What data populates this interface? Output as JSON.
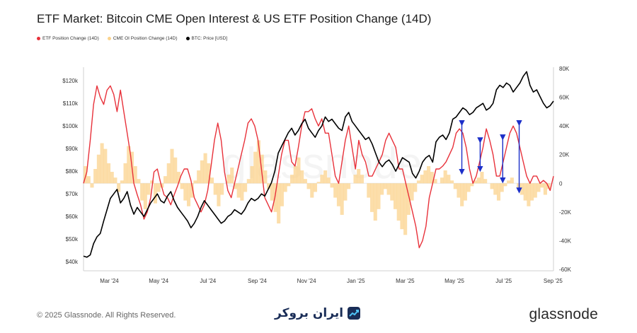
{
  "chart_data": {
    "type": "line",
    "title": "ETF Market: Bitcoin CME Open Interest & US ETF Position Change (14D)",
    "x_ticks": [
      "Mar '24",
      "May '24",
      "Jul '24",
      "Sep '24",
      "Nov '24",
      "Jan '25",
      "Mar '25",
      "May '25",
      "Jul '25",
      "Sep '25"
    ],
    "y_left_ticks": [
      "$120k",
      "$110k",
      "$100k",
      "$90k",
      "$80k",
      "$70k",
      "$60k",
      "$50k",
      "$40k"
    ],
    "y_left_values": [
      120000,
      110000,
      100000,
      90000,
      80000,
      70000,
      60000,
      50000,
      40000
    ],
    "y_right_ticks": [
      "80K",
      "60K",
      "40K",
      "20K",
      "0",
      "-20K",
      "-40K",
      "-60K"
    ],
    "y_right_values": [
      80000,
      60000,
      40000,
      20000,
      0,
      -20000,
      -40000,
      -60000
    ],
    "ylim_left": [
      36000,
      126000
    ],
    "ylim_right": [
      -61000,
      81000
    ],
    "legend_position": "top-left",
    "series": [
      {
        "name": "ETF Position Change (14D)",
        "color": "#e8313a",
        "axis": "right",
        "values": [
          0,
          8,
          30,
          55,
          68,
          60,
          55,
          65,
          68,
          62,
          50,
          65,
          50,
          35,
          20,
          0,
          -8,
          -15,
          -25,
          -20,
          -10,
          8,
          10,
          0,
          -8,
          -10,
          -15,
          -8,
          -2,
          5,
          10,
          10,
          2,
          -10,
          -15,
          -20,
          -15,
          -5,
          12,
          30,
          42,
          30,
          8,
          -5,
          -10,
          0,
          10,
          20,
          30,
          42,
          45,
          40,
          30,
          10,
          -10,
          -15,
          -20,
          -10,
          5,
          20,
          30,
          30,
          15,
          12,
          25,
          40,
          50,
          50,
          52,
          45,
          40,
          45,
          35,
          35,
          20,
          5,
          0,
          15,
          30,
          40,
          25,
          10,
          30,
          20,
          15,
          5,
          5,
          10,
          15,
          20,
          30,
          35,
          30,
          25,
          10,
          10,
          0,
          -10,
          -20,
          -30,
          -45,
          -40,
          -30,
          -10,
          0,
          10,
          10,
          12,
          15,
          20,
          25,
          35,
          38,
          35,
          25,
          10,
          0,
          5,
          15,
          25,
          38,
          30,
          20,
          5,
          5,
          15,
          25,
          35,
          40,
          35,
          25,
          15,
          5,
          0,
          5,
          5,
          0,
          2,
          0,
          -5,
          5
        ],
        "x_domain": [
          0,
          1
        ]
      },
      {
        "name": "CME OI Position Change (14D)",
        "color": "#fbd38d",
        "axis": "right",
        "values": [
          12,
          5,
          -3,
          10,
          20,
          28,
          24,
          14,
          8,
          4,
          -6,
          2,
          14,
          26,
          22,
          12,
          3,
          -12,
          -18,
          -8,
          2,
          -14,
          -6,
          -3,
          5,
          14,
          24,
          18,
          8,
          -4,
          -12,
          -16,
          -10,
          2,
          9,
          16,
          21,
          14,
          4,
          -8,
          -16,
          -8,
          0,
          6,
          11,
          -4,
          -10,
          -12,
          -6,
          3,
          12,
          22,
          30,
          20,
          9,
          -4,
          -12,
          -20,
          -28,
          -16,
          -6,
          -2,
          6,
          12,
          18,
          9,
          3,
          -4,
          -10,
          -6,
          1,
          6,
          9,
          4,
          -3,
          -10,
          -16,
          -22,
          -12,
          -4,
          0,
          6,
          10,
          6,
          0,
          -10,
          -20,
          -26,
          -18,
          -8,
          -4,
          -8,
          -12,
          -18,
          -26,
          -32,
          -36,
          -22,
          -12,
          -6,
          2,
          6,
          9,
          12,
          8,
          3,
          0,
          4,
          9,
          6,
          2,
          -4,
          -10,
          -16,
          -12,
          -6,
          -2,
          2,
          4,
          8,
          3,
          0,
          -4,
          -8,
          -12,
          -6,
          -2,
          2,
          4,
          0,
          -4,
          -8,
          -12,
          -16,
          -12,
          -10,
          -6,
          -3,
          -8,
          -4,
          0
        ],
        "x_domain": [
          0,
          1
        ]
      },
      {
        "name": "BTC: Price [USD]",
        "color": "#000000",
        "axis": "left",
        "values": [
          42500,
          42000,
          43000,
          48000,
          51000,
          52500,
          58000,
          63000,
          68000,
          70000,
          72000,
          66000,
          68000,
          71000,
          65000,
          61000,
          64000,
          62000,
          60000,
          63000,
          66000,
          68000,
          70000,
          67000,
          66000,
          69000,
          71000,
          67000,
          64000,
          62000,
          60000,
          58000,
          55000,
          57000,
          60000,
          64000,
          67000,
          65000,
          63000,
          61000,
          59000,
          57000,
          58000,
          60000,
          61000,
          63000,
          62000,
          61000,
          63000,
          66000,
          68000,
          67000,
          68000,
          70000,
          69000,
          72000,
          75000,
          80000,
          88000,
          91000,
          94000,
          97000,
          99000,
          96000,
          98000,
          101000,
          103000,
          99000,
          97000,
          95000,
          98000,
          100000,
          104000,
          102000,
          103000,
          101000,
          99000,
          98000,
          104000,
          106000,
          102000,
          100000,
          98000,
          96000,
          94000,
          95000,
          92000,
          88000,
          84000,
          82000,
          84000,
          85000,
          83000,
          80000,
          83000,
          86000,
          85000,
          84000,
          79000,
          77000,
          80000,
          84000,
          86000,
          87000,
          84000,
          93000,
          95000,
          96000,
          94000,
          97000,
          103000,
          104000,
          106000,
          108000,
          107000,
          105000,
          106000,
          108000,
          109000,
          110000,
          107000,
          108000,
          110000,
          116000,
          118000,
          117000,
          119000,
          118000,
          115000,
          117000,
          119000,
          122000,
          124000,
          118000,
          115000,
          116000,
          113000,
          110000,
          108000,
          109000,
          111000
        ],
        "x_domain": [
          0,
          1
        ]
      }
    ],
    "annotations": [
      {
        "type": "double-arrow",
        "x_frac": 0.805,
        "from": 42,
        "to": 8
      },
      {
        "type": "double-arrow",
        "x_frac": 0.844,
        "from": 30,
        "to": 10
      },
      {
        "type": "double-arrow",
        "x_frac": 0.892,
        "from": 32,
        "to": 2
      },
      {
        "type": "double-arrow",
        "x_frac": 0.927,
        "from": 42,
        "to": -5
      }
    ]
  },
  "legend": {
    "etf": "ETF Position Change (14D)",
    "cme": "CME OI Position Change (14D)",
    "btc": "BTC: Price [USD]"
  },
  "colors": {
    "etf": "#e8313a",
    "cme": "#fbd38d",
    "btc": "#000000",
    "arrow": "#1c2fc9"
  },
  "watermark": "glassnode",
  "footer": {
    "copyright": "© 2025 Glassnode. All Rights Reserved.",
    "brand_mid": "ایران بروکر",
    "brand_right": "glassnode"
  }
}
